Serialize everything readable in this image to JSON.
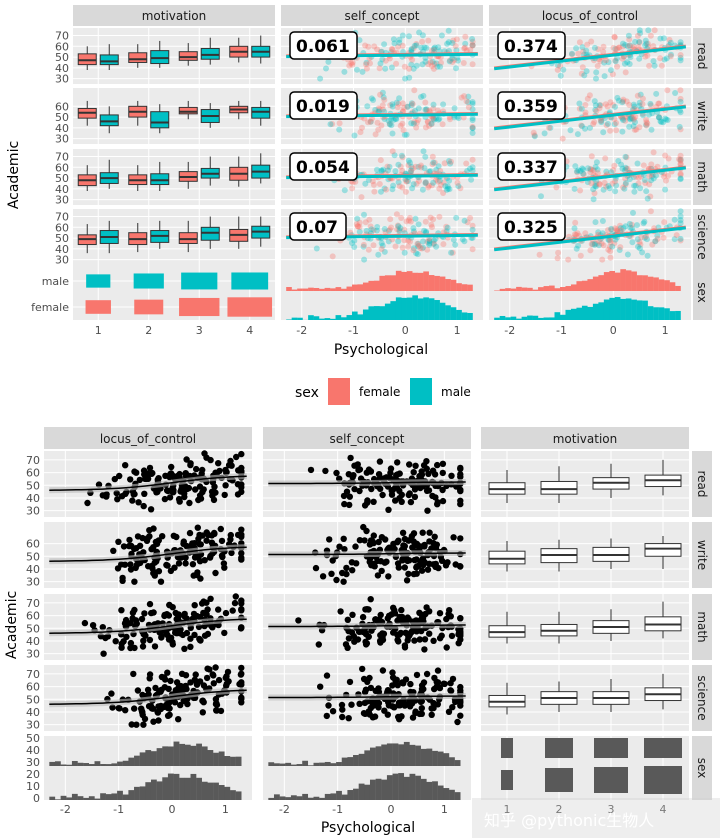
{
  "chart_data": [
    {
      "type": "scatter",
      "y_axis_label": "Academic",
      "x_axis_label": "Psychological",
      "column_strips": [
        "motivation",
        "self_concept",
        "locus_of_control"
      ],
      "row_strips": [
        "read",
        "write",
        "math",
        "science",
        "sex"
      ],
      "legend": {
        "title": "sex",
        "entries": [
          {
            "name": "female",
            "color": "#F8766D"
          },
          {
            "name": "male",
            "color": "#00BFC4"
          }
        ]
      },
      "correlations": [
        [
          "0.061",
          "0.374"
        ],
        [
          "0.019",
          "0.359"
        ],
        [
          "0.054",
          "0.337"
        ],
        [
          "0.07",
          "0.325"
        ]
      ],
      "motivation_ticks": [
        "1",
        "2",
        "3",
        "4"
      ],
      "sex_ticks": [
        "male",
        "female"
      ],
      "psych_ticks": [
        "-2",
        "-1",
        "0",
        "1"
      ],
      "y_ticks": [
        [
          "70",
          "60",
          "50",
          "40",
          "30"
        ],
        [
          "60",
          "50",
          "40",
          "30"
        ],
        [
          "70",
          "60",
          "50",
          "40",
          "30"
        ],
        [
          "70",
          "60",
          "50",
          "40",
          "30"
        ]
      ],
      "boxplots_by_sex": [
        {
          "female": [
            [
              38,
              43,
              47,
              53,
              60
            ],
            [
              40,
              45,
              48,
              54,
              62
            ],
            [
              42,
              47,
              50,
              55,
              63
            ],
            [
              45,
              50,
              55,
              60,
              68
            ]
          ],
          "male": [
            [
              38,
              43,
              46,
              52,
              62
            ],
            [
              40,
              44,
              49,
              56,
              65
            ],
            [
              43,
              48,
              52,
              58,
              68
            ],
            [
              44,
              50,
              55,
              60,
              70
            ]
          ]
        },
        {
          "female": [
            [
              42,
              49,
              54,
              58,
              65
            ],
            [
              42,
              50,
              55,
              60,
              65
            ],
            [
              48,
              53,
              55,
              59,
              65
            ],
            [
              48,
              54,
              57,
              60,
              65
            ]
          ],
          "male": [
            [
              35,
              42,
              46,
              52,
              60
            ],
            [
              35,
              40,
              45,
              55,
              62
            ],
            [
              40,
              45,
              51,
              57,
              63
            ],
            [
              42,
              49,
              55,
              59,
              65
            ]
          ]
        },
        {
          "female": [
            [
              38,
              43,
              48,
              53,
              62
            ],
            [
              38,
              44,
              48,
              53,
              62
            ],
            [
              40,
              47,
              51,
              56,
              65
            ],
            [
              42,
              48,
              54,
              60,
              70
            ]
          ],
          "male": [
            [
              40,
              45,
              50,
              55,
              67
            ],
            [
              38,
              44,
              48,
              54,
              65
            ],
            [
              43,
              50,
              54,
              59,
              70
            ],
            [
              45,
              50,
              56,
              62,
              73
            ]
          ]
        },
        {
          "female": [
            [
              36,
              44,
              49,
              53,
              63
            ],
            [
              37,
              44,
              49,
              55,
              64
            ],
            [
              37,
              45,
              49,
              55,
              66
            ],
            [
              40,
              47,
              53,
              58,
              70
            ]
          ],
          "male": [
            [
              36,
              45,
              51,
              57,
              66
            ],
            [
              40,
              46,
              52,
              57,
              66
            ],
            [
              40,
              48,
              55,
              60,
              70
            ],
            [
              42,
              50,
              56,
              61,
              70
            ]
          ]
        }
      ],
      "sex_counts": {
        "female": [
          18,
          30,
          68,
          82
        ],
        "male": [
          14,
          34,
          54,
          56
        ]
      }
    },
    {
      "type": "scatter",
      "y_axis_label": "Academic",
      "x_axis_label": "Psychological",
      "column_strips": [
        "locus_of_control",
        "self_concept",
        "motivation"
      ],
      "row_strips": [
        "read",
        "write",
        "math",
        "science",
        "sex"
      ],
      "psych_ticks": [
        "-2",
        "-1",
        "0",
        "1"
      ],
      "motivation_ticks": [
        "1",
        "2",
        "3",
        "4"
      ],
      "y_ticks": [
        [
          "70",
          "60",
          "50",
          "40",
          "30"
        ],
        [
          "60",
          "50",
          "40",
          "30"
        ],
        [
          "70",
          "60",
          "50",
          "40",
          "30"
        ],
        [
          "70",
          "60",
          "50",
          "40",
          "30"
        ]
      ],
      "hist_y_ticks": [
        "50",
        "40",
        "30",
        "20",
        "10",
        "0"
      ],
      "boxplots": [
        [
          [
            36,
            43,
            47,
            52,
            62
          ],
          [
            36,
            43,
            47,
            53,
            65
          ],
          [
            40,
            47,
            52,
            56,
            67
          ],
          [
            42,
            49,
            54,
            58,
            70
          ]
        ],
        [
          [
            38,
            44,
            48,
            54,
            62
          ],
          [
            38,
            45,
            51,
            56,
            63
          ],
          [
            40,
            46,
            51,
            57,
            64
          ],
          [
            40,
            50,
            56,
            60,
            66
          ]
        ],
        [
          [
            38,
            43,
            47,
            52,
            63
          ],
          [
            38,
            44,
            48,
            53,
            63
          ],
          [
            40,
            46,
            51,
            56,
            65
          ],
          [
            42,
            48,
            53,
            59,
            71
          ]
        ],
        [
          [
            38,
            44,
            48,
            53,
            63
          ],
          [
            40,
            46,
            51,
            56,
            64
          ],
          [
            40,
            46,
            51,
            56,
            66
          ],
          [
            42,
            49,
            54,
            59,
            70
          ]
        ]
      ]
    }
  ],
  "watermark": "知乎 @pythonic生物人"
}
